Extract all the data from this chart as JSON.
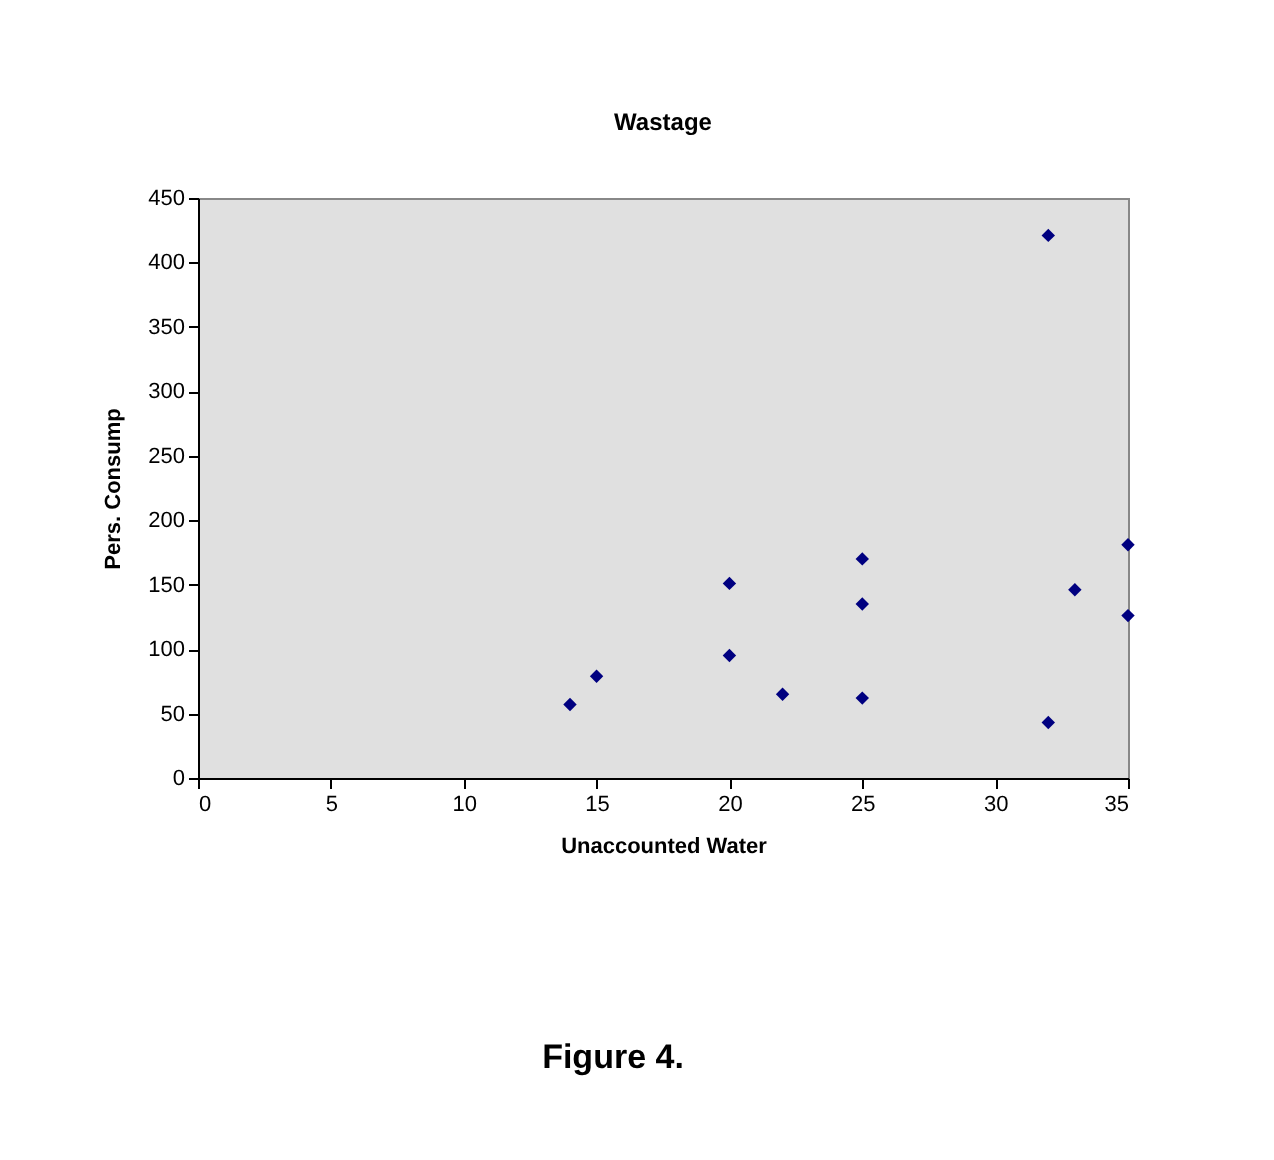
{
  "chart_data": {
    "type": "scatter",
    "title": "Wastage",
    "xlabel": "Unaccounted Water",
    "ylabel": "Pers. Consump",
    "x": [
      14,
      15,
      20,
      20,
      22,
      25,
      25,
      25,
      32,
      32,
      33,
      35,
      35
    ],
    "series": [
      {
        "color": "#000080",
        "values": [
          57,
          79,
          151,
          95,
          65,
          170,
          135,
          62,
          421,
          43,
          146,
          181,
          126
        ]
      }
    ],
    "xlim": [
      0,
      35
    ],
    "xticks": [
      0,
      5,
      10,
      15,
      20,
      25,
      30,
      35
    ],
    "ylim": [
      0,
      450
    ],
    "yticks": [
      0,
      50,
      100,
      150,
      200,
      250,
      300,
      350,
      400,
      450
    ],
    "marker": "diamond",
    "grid": false,
    "annotations": [
      "Figure 4."
    ]
  }
}
